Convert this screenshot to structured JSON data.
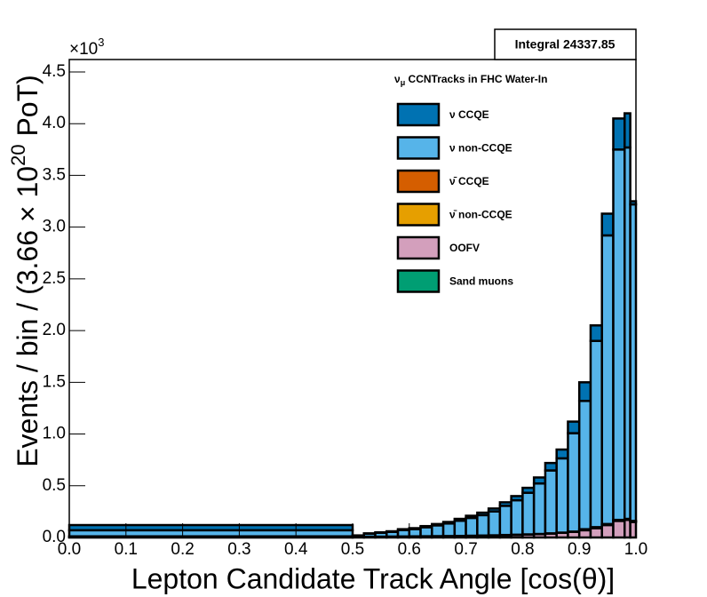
{
  "chart_data": {
    "type": "stacked_histogram",
    "integral_label": "Integral 24337.85",
    "legend_title": "ν",
    "legend_title_sub": "μ",
    "legend_title_rest": " CCNTracks in FHC Water-In",
    "x_label": "Lepton Candidate Track Angle [cos(θ)]",
    "y_label": "Events / bin / (3.66 × 10",
    "y_label_sup": "20",
    "y_label_end": " PoT)",
    "y_multiplier": "×10",
    "y_multiplier_exp": "3",
    "bins": [
      0,
      0.5,
      0.52,
      0.54,
      0.56,
      0.58,
      0.6,
      0.62,
      0.64,
      0.66,
      0.68,
      0.7,
      0.72,
      0.74,
      0.76,
      0.78,
      0.8,
      0.82,
      0.84,
      0.86,
      0.88,
      0.9,
      0.92,
      0.94,
      0.96,
      0.98,
      0.99,
      1.0
    ],
    "series": [
      {
        "name": "Sand muons",
        "color": "#009e73",
        "values": [
          0.001,
          0,
          0,
          0,
          0,
          0,
          0,
          0,
          0,
          0,
          0,
          0,
          0,
          0,
          0,
          0,
          0,
          0,
          0,
          0,
          0,
          0,
          0,
          0,
          0,
          0,
          0
        ]
      },
      {
        "name": "OOFV",
        "color": "#d39fbc",
        "values": [
          0.005,
          0.003,
          0.005,
          0.006,
          0.007,
          0.008,
          0.009,
          0.01,
          0.011,
          0.012,
          0.013,
          0.015,
          0.017,
          0.019,
          0.022,
          0.025,
          0.028,
          0.032,
          0.038,
          0.045,
          0.055,
          0.07,
          0.09,
          0.12,
          0.16,
          0.17,
          0.15
        ]
      },
      {
        "name": "ν̄ non-CCQE",
        "color": "#e69f00",
        "values": [
          0.003,
          0.001,
          0.001,
          0.001,
          0.001,
          0.001,
          0.001,
          0.001,
          0.001,
          0.001,
          0.001,
          0.001,
          0.001,
          0.001,
          0.001,
          0.001,
          0.001,
          0.001,
          0.001,
          0.001,
          0.001,
          0.005,
          0.005,
          0.005,
          0.005,
          0.005,
          0.005
        ]
      },
      {
        "name": "ν̄ CCQE",
        "color": "#d55e00",
        "values": [
          0.002,
          0.001,
          0.001,
          0.001,
          0.001,
          0.001,
          0.001,
          0.001,
          0.001,
          0.001,
          0.001,
          0.001,
          0.001,
          0.001,
          0.001,
          0.001,
          0.001,
          0.001,
          0.001,
          0.001,
          0.001,
          0.005,
          0.005,
          0.005,
          0.005,
          0.005,
          0.005
        ]
      },
      {
        "name": "ν non-CCQE",
        "color": "#56b4e9",
        "values": [
          0.059,
          0.013,
          0.029,
          0.037,
          0.045,
          0.062,
          0.07,
          0.087,
          0.104,
          0.121,
          0.147,
          0.172,
          0.197,
          0.231,
          0.282,
          0.333,
          0.402,
          0.488,
          0.608,
          0.718,
          0.951,
          1.24,
          1.8,
          2.79,
          3.58,
          3.59,
          3.06
        ]
      },
      {
        "name": "ν CCQE",
        "color": "#0072b2",
        "values": [
          0.05,
          0.002,
          0.004,
          0.005,
          0.006,
          0.008,
          0.009,
          0.011,
          0.013,
          0.015,
          0.018,
          0.021,
          0.024,
          0.028,
          0.034,
          0.04,
          0.048,
          0.058,
          0.072,
          0.085,
          0.112,
          0.18,
          0.15,
          0.21,
          0.3,
          0.33,
          0.03
        ]
      }
    ],
    "legend_order": [
      5,
      4,
      3,
      2,
      1,
      0
    ],
    "xlim": [
      0,
      1.0
    ],
    "ylim": [
      0,
      4.62
    ],
    "xticks": [
      {
        "value": 0,
        "label": "0.0"
      },
      0.1,
      0.2,
      0.3,
      0.4,
      0.5,
      0.6,
      0.7,
      0.8,
      0.9,
      {
        "value": 1,
        "label": "1.0"
      }
    ],
    "yticks": [
      {
        "value": 0,
        "label": "0.0"
      },
      0.5,
      {
        "value": 1,
        "label": "1.0"
      },
      1.5,
      {
        "value": 2,
        "label": "2.0"
      },
      2.5,
      {
        "value": 3,
        "label": "3.0"
      },
      3.5,
      {
        "value": 4,
        "label": "4.0"
      },
      4.5
    ]
  }
}
